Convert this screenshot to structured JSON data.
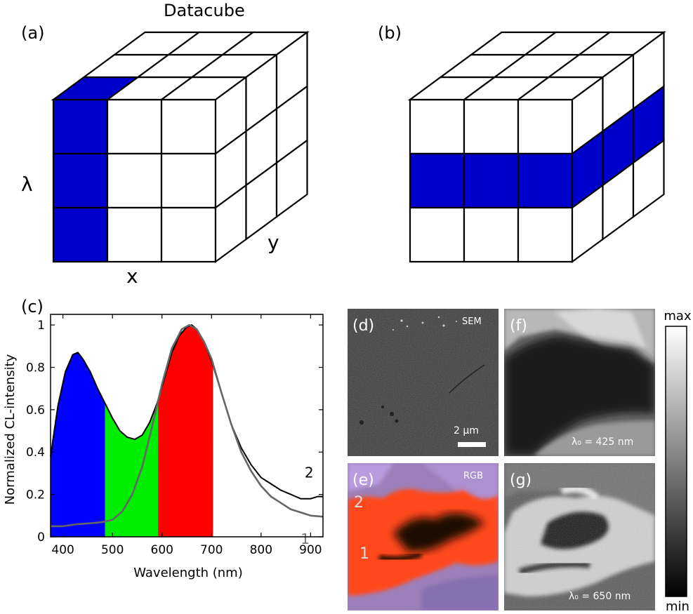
{
  "labels": {
    "a": "(a)",
    "b": "(b)",
    "c": "(c)",
    "d": "(d)",
    "e": "(e)",
    "f": "(f)",
    "g": "(g)"
  },
  "cube": {
    "title": "Datacube",
    "axis_lambda": "λ",
    "axis_x": "x",
    "axis_y": "y",
    "highlight_color": "#0000cc"
  },
  "chart_data": {
    "type": "area",
    "xlabel": "Wavelength (nm)",
    "ylabel": "Normalized CL-intensity",
    "xlim": [
      375,
      925
    ],
    "ylim": [
      0,
      1.05
    ],
    "xticks": [
      400,
      500,
      600,
      700,
      800,
      900
    ],
    "yticks": [
      0,
      0.2,
      0.4,
      0.6,
      0.8,
      1
    ],
    "bands": [
      {
        "from": 375,
        "to": 485,
        "color": "#0000ff"
      },
      {
        "from": 485,
        "to": 592,
        "color": "#00ee00"
      },
      {
        "from": 592,
        "to": 703,
        "color": "#ff0000"
      }
    ],
    "series": [
      {
        "name": "2",
        "color": "#000000",
        "x": [
          375,
          390,
          405,
          420,
          430,
          440,
          455,
          470,
          485,
          500,
          515,
          530,
          545,
          560,
          575,
          590,
          605,
          620,
          635,
          650,
          660,
          670,
          685,
          700,
          720,
          740,
          760,
          780,
          800,
          820,
          840,
          860,
          880,
          900,
          915,
          925
        ],
        "y": [
          0.38,
          0.62,
          0.78,
          0.86,
          0.87,
          0.84,
          0.78,
          0.7,
          0.63,
          0.56,
          0.5,
          0.47,
          0.46,
          0.48,
          0.54,
          0.63,
          0.75,
          0.87,
          0.95,
          0.99,
          1.0,
          0.98,
          0.92,
          0.83,
          0.68,
          0.53,
          0.42,
          0.34,
          0.28,
          0.25,
          0.22,
          0.2,
          0.18,
          0.18,
          0.19,
          0.19
        ]
      },
      {
        "name": "1",
        "color": "#666666",
        "x": [
          375,
          400,
          430,
          460,
          480,
          500,
          520,
          540,
          560,
          580,
          600,
          620,
          640,
          655,
          670,
          685,
          700,
          720,
          740,
          760,
          780,
          800,
          820,
          840,
          860,
          880,
          900,
          925
        ],
        "y": [
          0.05,
          0.05,
          0.06,
          0.065,
          0.07,
          0.08,
          0.12,
          0.2,
          0.33,
          0.52,
          0.72,
          0.89,
          0.98,
          1.0,
          0.98,
          0.92,
          0.84,
          0.68,
          0.53,
          0.4,
          0.31,
          0.24,
          0.19,
          0.16,
          0.13,
          0.115,
          0.1,
          0.095
        ]
      }
    ]
  },
  "images": {
    "d_tag": "SEM",
    "d_scale": "2 µm",
    "e_tag": "RGB",
    "e_mark_2": "2",
    "e_mark_1": "1",
    "f_lambda": "λ₀ = 425 nm",
    "g_lambda": "λ₀ = 650 nm"
  },
  "colorbar": {
    "max": "max",
    "min": "min"
  }
}
